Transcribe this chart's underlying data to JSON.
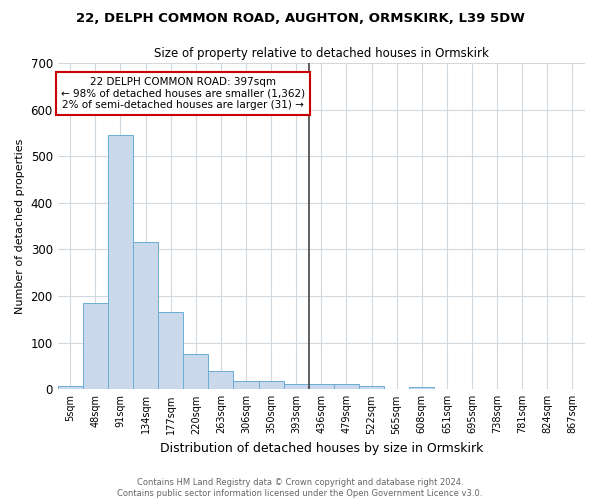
{
  "title": "22, DELPH COMMON ROAD, AUGHTON, ORMSKIRK, L39 5DW",
  "subtitle": "Size of property relative to detached houses in Ormskirk",
  "xlabel": "Distribution of detached houses by size in Ormskirk",
  "ylabel": "Number of detached properties",
  "bar_labels": [
    "5sqm",
    "48sqm",
    "91sqm",
    "134sqm",
    "177sqm",
    "220sqm",
    "263sqm",
    "306sqm",
    "350sqm",
    "393sqm",
    "436sqm",
    "479sqm",
    "522sqm",
    "565sqm",
    "608sqm",
    "651sqm",
    "695sqm",
    "738sqm",
    "781sqm",
    "824sqm",
    "867sqm"
  ],
  "bar_values": [
    8,
    185,
    545,
    315,
    165,
    75,
    40,
    18,
    18,
    11,
    11,
    11,
    8,
    0,
    5,
    0,
    0,
    0,
    0,
    0,
    0
  ],
  "bar_color": "#c9d9eb",
  "bar_edge_color": "#6aadd5",
  "vline_color": "#444444",
  "ylim": [
    0,
    700
  ],
  "yticks": [
    0,
    100,
    200,
    300,
    400,
    500,
    600,
    700
  ],
  "annotation_title": "22 DELPH COMMON ROAD: 397sqm",
  "annotation_line1": "← 98% of detached houses are smaller (1,362)",
  "annotation_line2": "2% of semi-detached houses are larger (31) →",
  "annotation_box_color": "#ffffff",
  "annotation_box_edge": "#cc0000",
  "footer1": "Contains HM Land Registry data © Crown copyright and database right 2024.",
  "footer2": "Contains public sector information licensed under the Open Government Licence v3.0.",
  "background_color": "#ffffff",
  "plot_bg_color": "#ffffff",
  "grid_color": "#d0d8e0"
}
